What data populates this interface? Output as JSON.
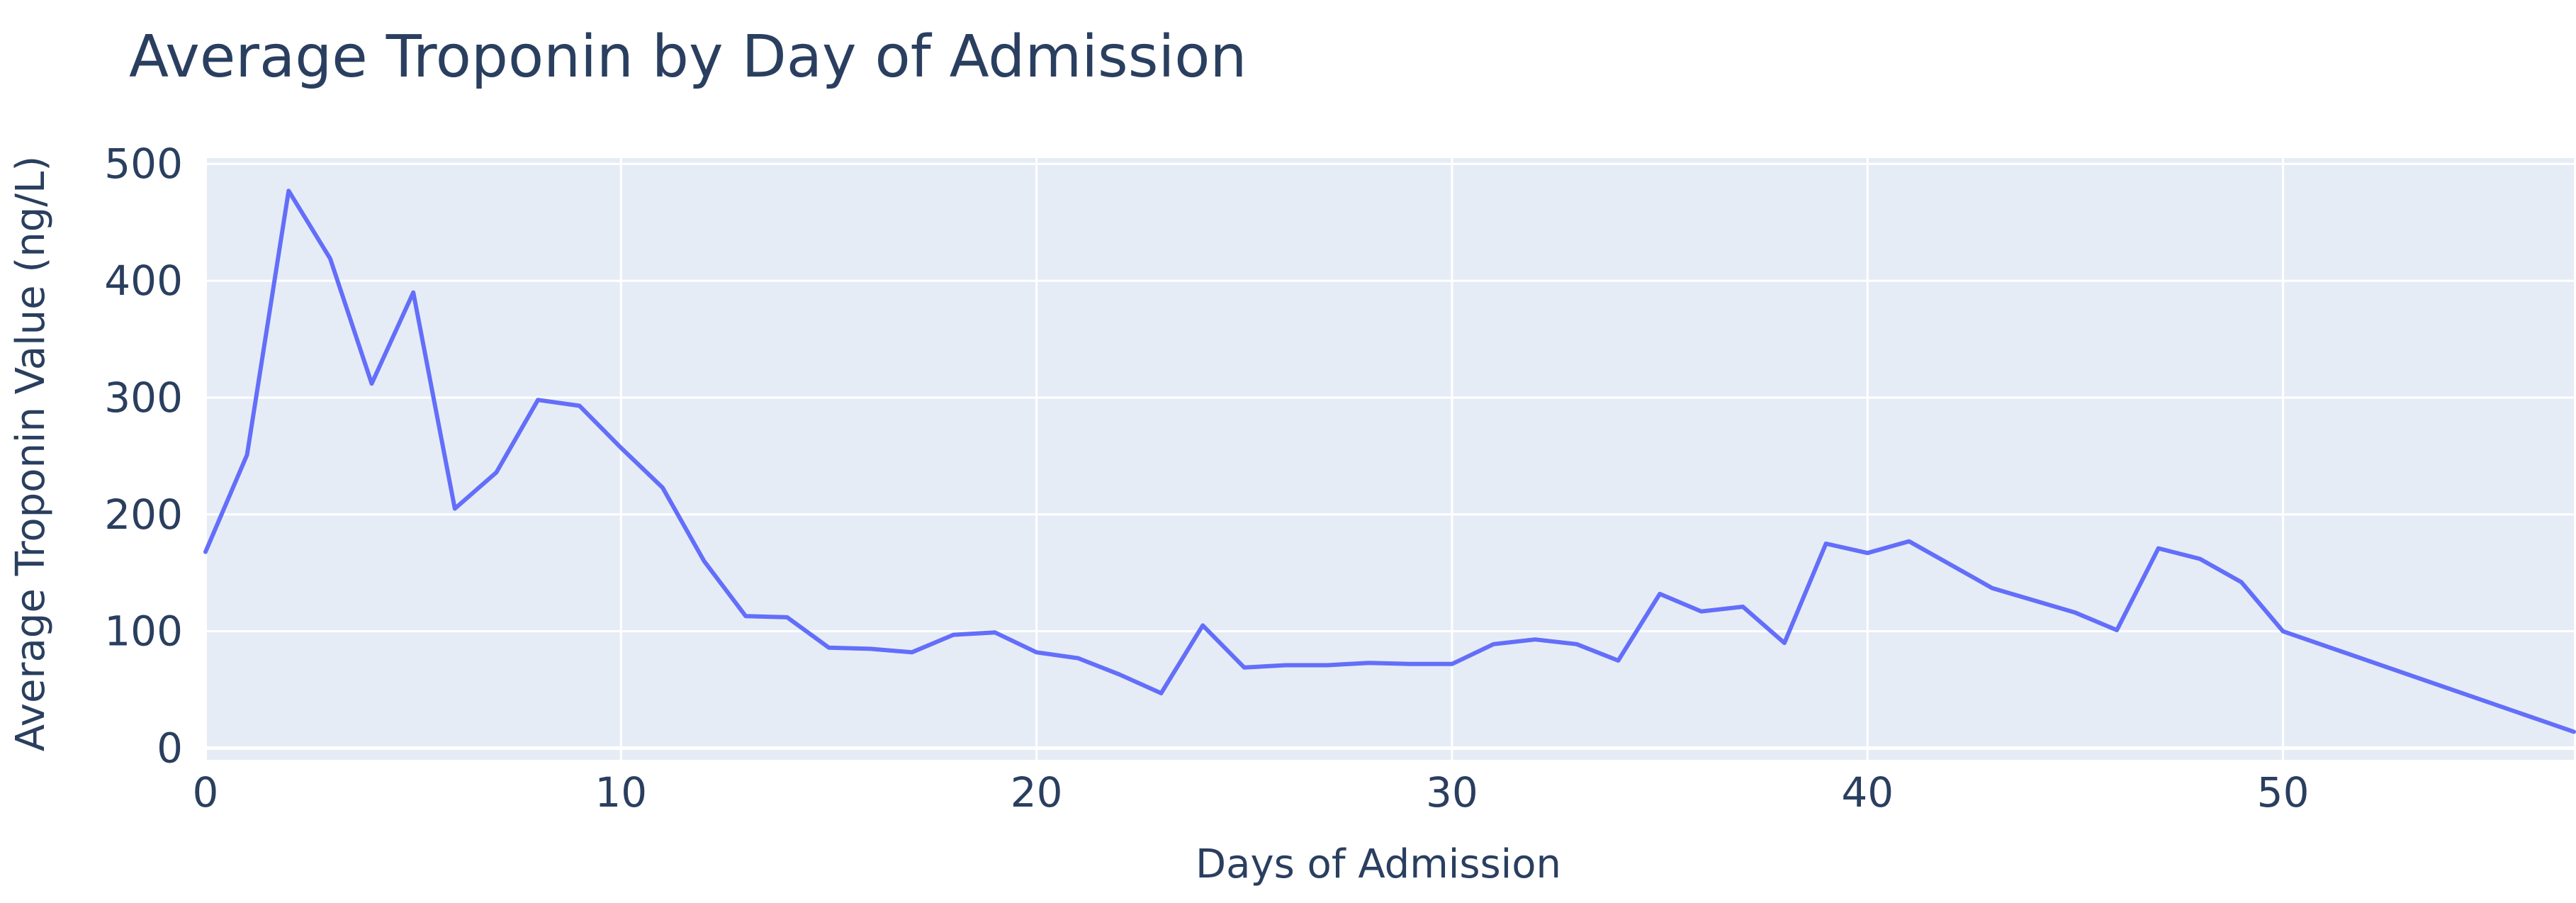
{
  "colors": {
    "plot_background": "#e5ecf6",
    "grid": "#ffffff",
    "line": "#636efa",
    "text": "#2a3f5f"
  },
  "chart_data": {
    "type": "line",
    "title": "Average Troponin by Day of Admission",
    "xlabel": "Days of Admission",
    "ylabel": "Average Troponin Value (ng/L)",
    "xlim": [
      0,
      57
    ],
    "ylim": [
      -10,
      505
    ],
    "xticks": [
      0,
      10,
      20,
      30,
      40,
      50
    ],
    "yticks": [
      0,
      100,
      200,
      300,
      400,
      500
    ],
    "grid": true,
    "series": [
      {
        "x": [
          0,
          1,
          2,
          3,
          4,
          5,
          6,
          7,
          8,
          9,
          10,
          11,
          12,
          13,
          14,
          15,
          16,
          17,
          18,
          19,
          20,
          21,
          22,
          23,
          24,
          25,
          26,
          27,
          28,
          29,
          30,
          31,
          32,
          33,
          34,
          35,
          36,
          37,
          38,
          39,
          40,
          41,
          43,
          45,
          46,
          47,
          48,
          49,
          50,
          57
        ],
        "y": [
          168,
          251,
          477,
          419,
          312,
          390,
          205,
          236,
          298,
          293,
          257,
          223,
          160,
          113,
          112,
          86,
          85,
          82,
          97,
          99,
          82,
          77,
          63,
          47,
          105,
          69,
          71,
          71,
          73,
          72,
          72,
          89,
          93,
          89,
          75,
          132,
          117,
          121,
          90,
          175,
          167,
          177,
          137,
          116,
          101,
          171,
          162,
          142,
          100,
          14
        ]
      }
    ]
  }
}
